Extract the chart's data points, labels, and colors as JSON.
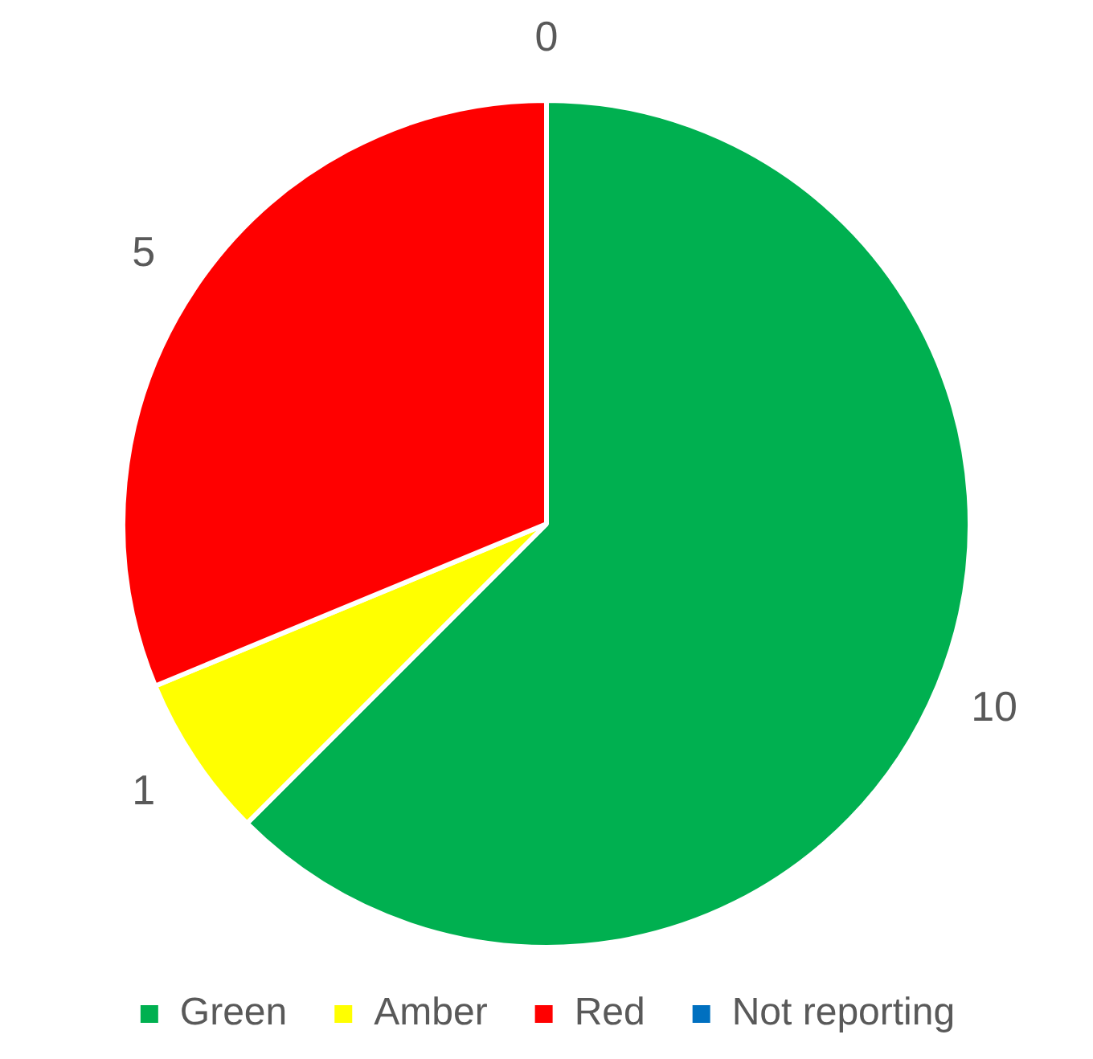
{
  "chart_data": {
    "type": "pie",
    "categories": [
      "Green",
      "Amber",
      "Red",
      "Not reporting"
    ],
    "values": [
      10,
      1,
      5,
      0
    ],
    "colors": [
      "#00b050",
      "#ffff00",
      "#ff0000",
      "#0070c0"
    ],
    "value_labels": [
      "10",
      "1",
      "5",
      "0"
    ],
    "legend": "bottom"
  }
}
